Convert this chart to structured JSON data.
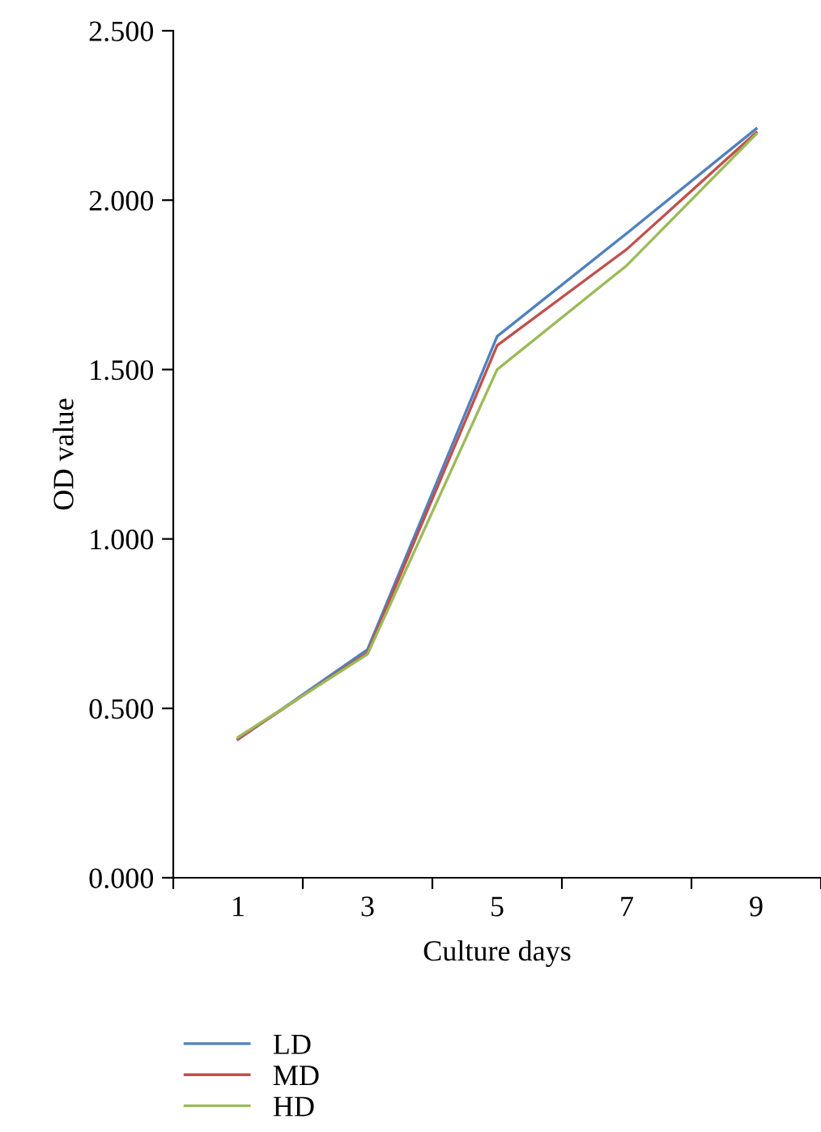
{
  "chart_data": {
    "type": "line",
    "xlabel": "Culture days",
    "ylabel": "OD value",
    "categories": [
      "1",
      "3",
      "5",
      "7",
      "9"
    ],
    "series": [
      {
        "name": "LD",
        "color": "#4f81bd",
        "values": [
          0.408,
          0.674,
          1.598,
          1.902,
          2.211
        ]
      },
      {
        "name": "MD",
        "color": "#c0504d",
        "values": [
          0.41,
          0.665,
          1.571,
          1.855,
          2.2
        ]
      },
      {
        "name": "HD",
        "color": "#9bbb59",
        "values": [
          0.415,
          0.66,
          1.5,
          1.807,
          2.195
        ]
      }
    ],
    "ylim": [
      0,
      2.5
    ],
    "yticks": [
      {
        "value": 0,
        "label": "0.000"
      },
      {
        "value": 0.5,
        "label": "0.500"
      },
      {
        "value": 1,
        "label": "1.000"
      },
      {
        "value": 1.5,
        "label": "1.500"
      },
      {
        "value": 2,
        "label": "2.000"
      },
      {
        "value": 2.5,
        "label": "2.500"
      }
    ],
    "grid": false,
    "legend": "bottom",
    "marker": "none",
    "line_style": "solid"
  }
}
